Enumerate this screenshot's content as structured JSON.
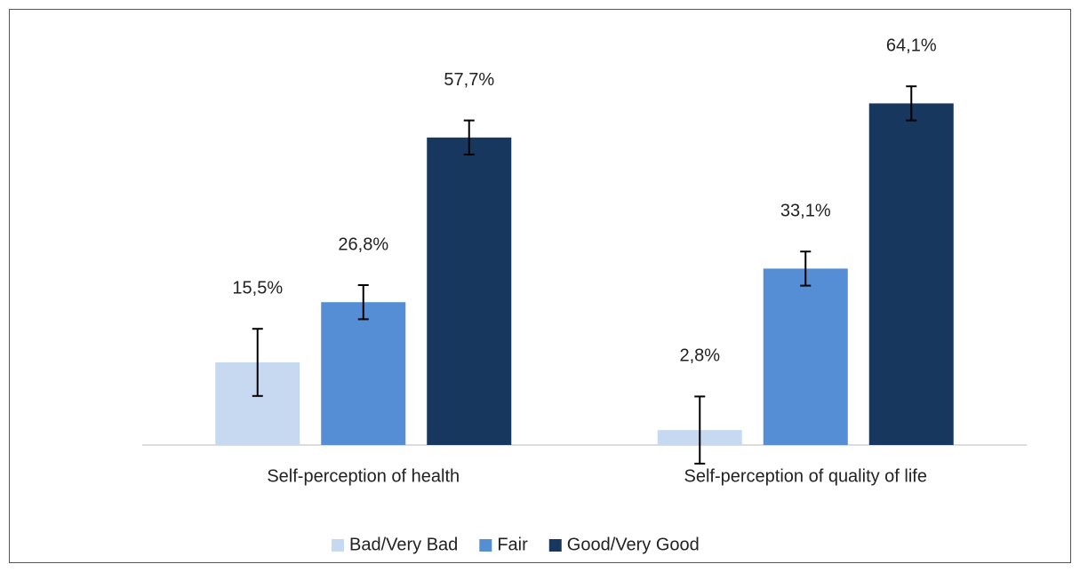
{
  "chart_data": {
    "type": "bar",
    "categories": [
      "Self-perception of health",
      "Self-perception of quality of life"
    ],
    "series": [
      {
        "name": "Bad/Very Bad",
        "color": "#c6d9f1",
        "values": [
          15.5,
          2.8
        ],
        "value_labels": [
          "15,5%",
          "2,8%"
        ],
        "errors": [
          6.3,
          6.3
        ]
      },
      {
        "name": "Fair",
        "color": "#558ed5",
        "values": [
          26.8,
          33.1
        ],
        "value_labels": [
          "26,8%",
          "33,1%"
        ],
        "errors": [
          3.2,
          3.2
        ]
      },
      {
        "name": "Good/Very Good",
        "color": "#17375e",
        "values": [
          57.7,
          64.1
        ],
        "value_labels": [
          "57,7%",
          "64,1%"
        ],
        "errors": [
          3.2,
          3.2
        ]
      }
    ],
    "ylim": [
      0,
      80
    ],
    "legend": "bottom"
  }
}
